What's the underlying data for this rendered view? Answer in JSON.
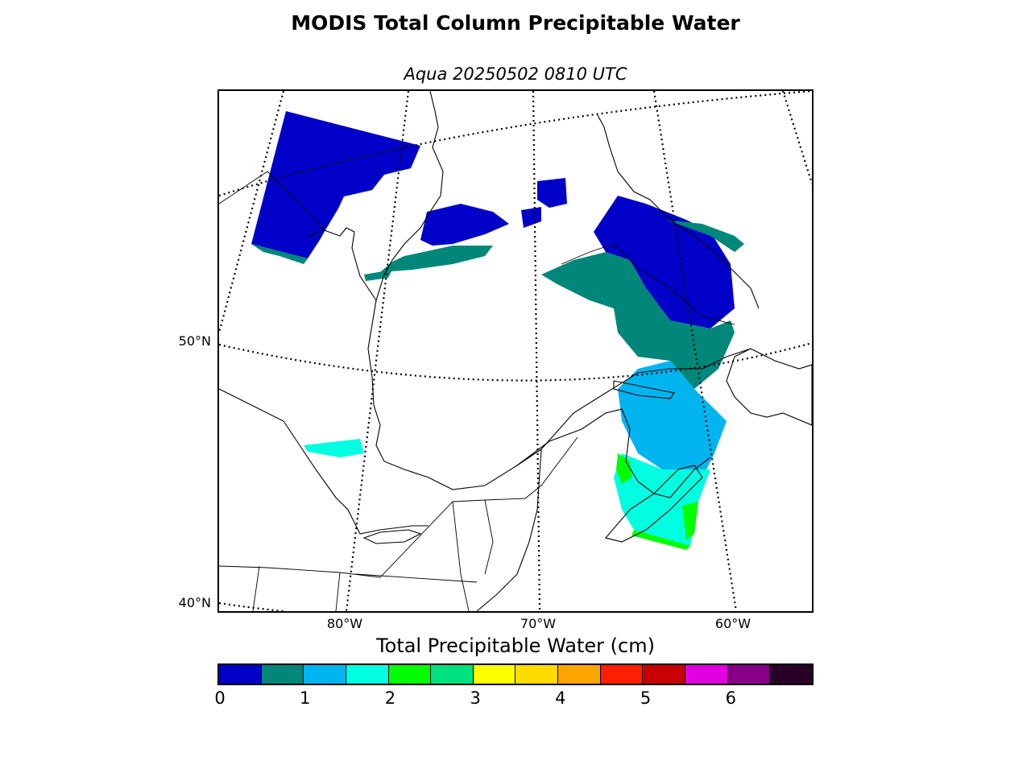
{
  "title": "MODIS Total Column Precipitable Water",
  "subtitle": "Aqua 20250502 0810 UTC",
  "lat_labels": [
    "50°N",
    "40°N"
  ],
  "lon_labels": [
    "80°W",
    "70°W",
    "60°W"
  ],
  "colorbar": {
    "label": "Total Precipitable Water (cm)",
    "colors": [
      "#0000c8",
      "#00877a",
      "#00b4f0",
      "#00ffe1",
      "#00ff00",
      "#00e182",
      "#ffff00",
      "#ffdc00",
      "#ffa500",
      "#ff1e00",
      "#c80000",
      "#e100e1",
      "#870087",
      "#280028"
    ],
    "ticks": [
      "0",
      "1",
      "2",
      "3",
      "4",
      "5",
      "6"
    ],
    "range": [
      0,
      7
    ],
    "step": 0.5
  }
}
